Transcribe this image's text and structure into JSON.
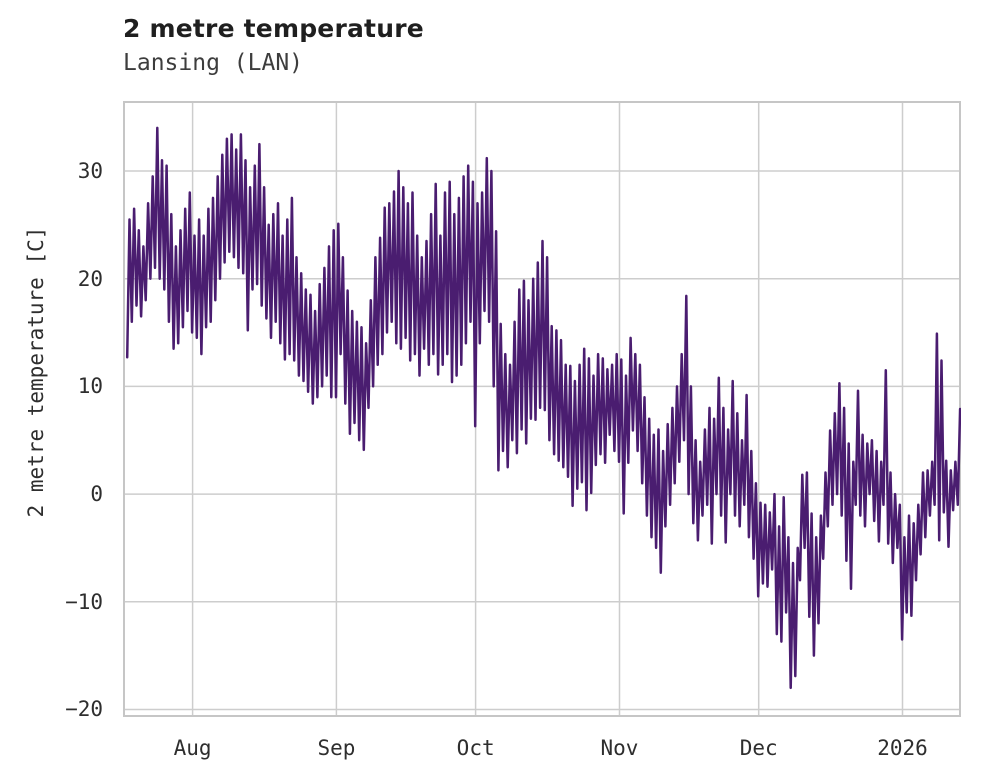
{
  "header": {
    "title": "2 metre temperature",
    "subtitle": "Lansing (LAN)"
  },
  "colors": {
    "line": "#4a1d70",
    "grid": "#cdcdcd",
    "frame": "#c6c6c6",
    "title_text": "#1f1f1f",
    "text": "#2e2e2e",
    "background": "#ffffff"
  },
  "chart_data": {
    "type": "line",
    "title": "2 metre temperature",
    "subtitle": "Lansing (LAN)",
    "xlabel": "",
    "ylabel": "2 metre temperature [C]",
    "grid": true,
    "legend": "none",
    "line_color": "#4a1d70",
    "ylim": [
      -20.7,
      36.5
    ],
    "ytick_values": [
      30,
      20,
      10,
      0,
      -10,
      -20
    ],
    "ytick_labels": [
      "30",
      "20",
      "10",
      "0",
      "−10",
      "−20"
    ],
    "xlim_days": [
      0,
      180.6
    ],
    "x_origin_note": "day 0 = mid-July 2025; series is daily [min,max] pairs through mid-January 2026",
    "xticks": [
      {
        "day": 15,
        "label": "Aug"
      },
      {
        "day": 46,
        "label": "Sep"
      },
      {
        "day": 76,
        "label": "Oct"
      },
      {
        "day": 107,
        "label": "Nov"
      },
      {
        "day": 137,
        "label": "Dec"
      },
      {
        "day": 168,
        "label": "2026"
      }
    ],
    "points_per_day": 2,
    "daily_minmax": [
      [
        12.7,
        25.5
      ],
      [
        16,
        26.5
      ],
      [
        17.5,
        24.5
      ],
      [
        16.5,
        23
      ],
      [
        18,
        27
      ],
      [
        20,
        29.5
      ],
      [
        21,
        34
      ],
      [
        20,
        31
      ],
      [
        19,
        30.5
      ],
      [
        16,
        26
      ],
      [
        13.5,
        23
      ],
      [
        14,
        24.5
      ],
      [
        15.5,
        26.5
      ],
      [
        17,
        28
      ],
      [
        15,
        24
      ],
      [
        14.5,
        25.5
      ],
      [
        13,
        24
      ],
      [
        15.5,
        26.5
      ],
      [
        16,
        27.5
      ],
      [
        18,
        29.5
      ],
      [
        20,
        31.5
      ],
      [
        21.5,
        33
      ],
      [
        22.5,
        33.4
      ],
      [
        22,
        32
      ],
      [
        21,
        33.4
      ],
      [
        20.5,
        31
      ],
      [
        15.2,
        28.5
      ],
      [
        19,
        30.5
      ],
      [
        19.5,
        32.5
      ],
      [
        17.5,
        28.5
      ],
      [
        16.3,
        25
      ],
      [
        14.5,
        26
      ],
      [
        16,
        27
      ],
      [
        14,
        24
      ],
      [
        12.5,
        25.5
      ],
      [
        13,
        27.5
      ],
      [
        12.4,
        22
      ],
      [
        11,
        20.5
      ],
      [
        10.5,
        19
      ],
      [
        9.5,
        18.5
      ],
      [
        8.4,
        17
      ],
      [
        9,
        19.5
      ],
      [
        10,
        21
      ],
      [
        11,
        23
      ],
      [
        9,
        24.5
      ],
      [
        9,
        25.1
      ],
      [
        13,
        22
      ],
      [
        8.4,
        18.9
      ],
      [
        5.6,
        17
      ],
      [
        6.6,
        16
      ],
      [
        5,
        15.5
      ],
      [
        4.1,
        14
      ],
      [
        8,
        18
      ],
      [
        10,
        22
      ],
      [
        12,
        23.8
      ],
      [
        13,
        26.6
      ],
      [
        15,
        27
      ],
      [
        16,
        28.1
      ],
      [
        14,
        30
      ],
      [
        13.5,
        28.5
      ],
      [
        14.5,
        27
      ],
      [
        12.4,
        28
      ],
      [
        13,
        24
      ],
      [
        11,
        22
      ],
      [
        13.5,
        23.5
      ],
      [
        12,
        26
      ],
      [
        13,
        28.8
      ],
      [
        11.1,
        24
      ],
      [
        12,
        28
      ],
      [
        13,
        29
      ],
      [
        10.4,
        26
      ],
      [
        11,
        27.5
      ],
      [
        12,
        29.5
      ],
      [
        14,
        30.5
      ],
      [
        16,
        29
      ],
      [
        6.3,
        27
      ],
      [
        14,
        28
      ],
      [
        17,
        31.2
      ],
      [
        16,
        30
      ],
      [
        10,
        24.4
      ],
      [
        2.2,
        15.8
      ],
      [
        4,
        13
      ],
      [
        2.5,
        12
      ],
      [
        5,
        16
      ],
      [
        3.8,
        19
      ],
      [
        6,
        19.8
      ],
      [
        4.7,
        18
      ],
      [
        7,
        20
      ],
      [
        6.9,
        21.5
      ],
      [
        8,
        23.5
      ],
      [
        7.8,
        22
      ],
      [
        5,
        15.6
      ],
      [
        3.7,
        15.2
      ],
      [
        3.1,
        14.3
      ],
      [
        2.5,
        12
      ],
      [
        1.6,
        11.9
      ],
      [
        -1.1,
        10.5
      ],
      [
        0.5,
        12
      ],
      [
        1.1,
        13.5
      ],
      [
        -1.5,
        12.6
      ],
      [
        0.1,
        11
      ],
      [
        2.7,
        13
      ],
      [
        3.7,
        12.6
      ],
      [
        2.9,
        11.6
      ],
      [
        5.5,
        12
      ],
      [
        4,
        13
      ],
      [
        3,
        12.5
      ],
      [
        -1.8,
        11
      ],
      [
        2.9,
        14.5
      ],
      [
        5.9,
        13
      ],
      [
        4,
        12
      ],
      [
        1,
        9
      ],
      [
        -2,
        7
      ],
      [
        -4,
        5.5
      ],
      [
        -5,
        6
      ],
      [
        -7.3,
        4
      ],
      [
        -3,
        6.5
      ],
      [
        -1,
        8
      ],
      [
        1,
        10
      ],
      [
        3,
        13
      ],
      [
        5,
        18.4
      ],
      [
        0,
        10
      ],
      [
        -2.7,
        5
      ],
      [
        -4.3,
        3
      ],
      [
        -2,
        6
      ],
      [
        -1,
        8
      ],
      [
        -4.6,
        7
      ],
      [
        0,
        10.8
      ],
      [
        -2,
        8
      ],
      [
        -4.5,
        6
      ],
      [
        0,
        10.5
      ],
      [
        -2,
        7.5
      ],
      [
        -3,
        5
      ],
      [
        -1,
        9.2
      ],
      [
        -4,
        4
      ],
      [
        -6,
        1
      ],
      [
        -9.5,
        -0.8
      ],
      [
        -8.3,
        -1
      ],
      [
        -8.6,
        -1.7
      ],
      [
        -7,
        0
      ],
      [
        -13,
        -3
      ],
      [
        -13.7,
        -0.3
      ],
      [
        -11,
        -4
      ],
      [
        -18,
        -6.4
      ],
      [
        -16.9,
        -5
      ],
      [
        -8,
        1.8
      ],
      [
        -5,
        2
      ],
      [
        -11.4,
        -1.8
      ],
      [
        -15,
        -4
      ],
      [
        -12,
        -2
      ],
      [
        -6,
        2
      ],
      [
        -3,
        5.9
      ],
      [
        -1,
        7.5
      ],
      [
        0,
        10.3
      ],
      [
        -2,
        8
      ],
      [
        -6.2,
        4.7
      ],
      [
        -8.8,
        3
      ],
      [
        -1,
        9.6
      ],
      [
        -2,
        5.5
      ],
      [
        -3,
        4.7
      ],
      [
        0,
        5
      ],
      [
        -2.5,
        4
      ],
      [
        -4.4,
        3
      ],
      [
        -1,
        11.5
      ],
      [
        -4.6,
        2
      ],
      [
        -6.4,
        0
      ],
      [
        -5,
        -1
      ],
      [
        -13.5,
        -4
      ],
      [
        -11,
        -2
      ],
      [
        -11.3,
        -2.7
      ],
      [
        -8,
        -1
      ],
      [
        -5.6,
        2
      ],
      [
        -4,
        2.2
      ],
      [
        -2,
        3
      ],
      [
        -1,
        14.9
      ],
      [
        -4.3,
        12.4
      ],
      [
        -1.7,
        3.1
      ],
      [
        -4.9,
        2.2
      ],
      [
        -1.5,
        3
      ],
      [
        -1,
        7.9
      ]
    ]
  }
}
